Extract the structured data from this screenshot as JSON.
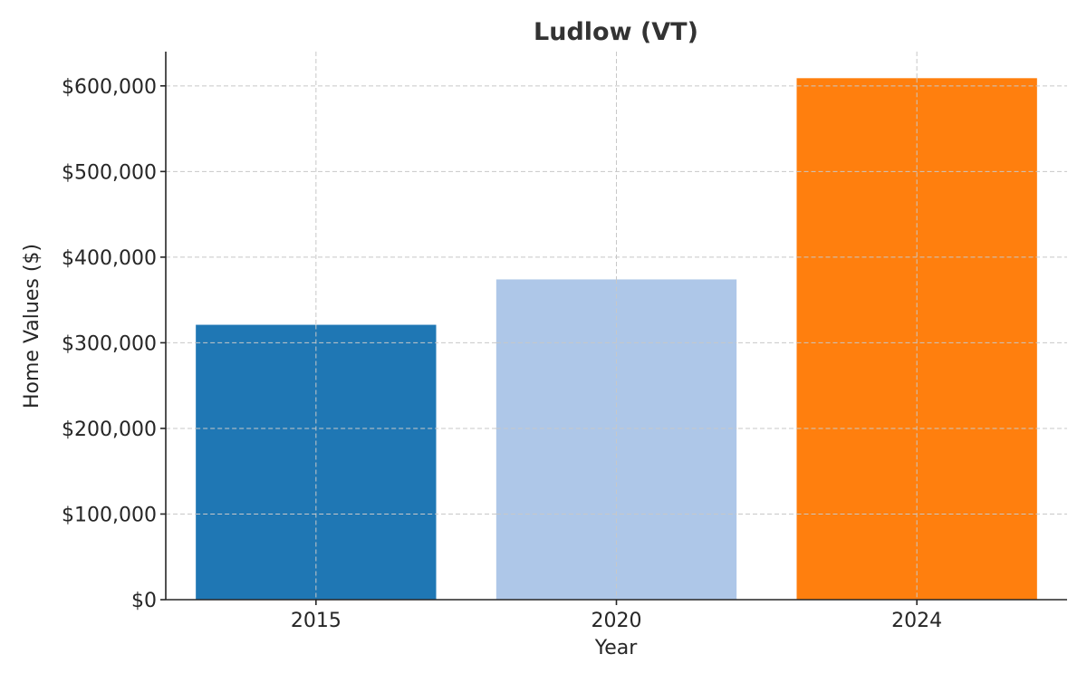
{
  "chart_data": {
    "type": "bar",
    "title": "Ludlow (VT)",
    "xlabel": "Year",
    "ylabel": "Home Values ($)",
    "categories": [
      "2015",
      "2020",
      "2024"
    ],
    "values": [
      321000,
      374000,
      609000
    ],
    "colors": [
      "#1f77b4",
      "#aec7e8",
      "#ff7f0e"
    ],
    "ylim": [
      0,
      640000
    ],
    "yticks": [
      0,
      100000,
      200000,
      300000,
      400000,
      500000,
      600000
    ],
    "ytick_labels": [
      "$0",
      "$100,000",
      "$200,000",
      "$300,000",
      "$400,000",
      "$500,000",
      "$600,000"
    ],
    "grid": true,
    "grid_style": "dashed",
    "legend": false
  }
}
